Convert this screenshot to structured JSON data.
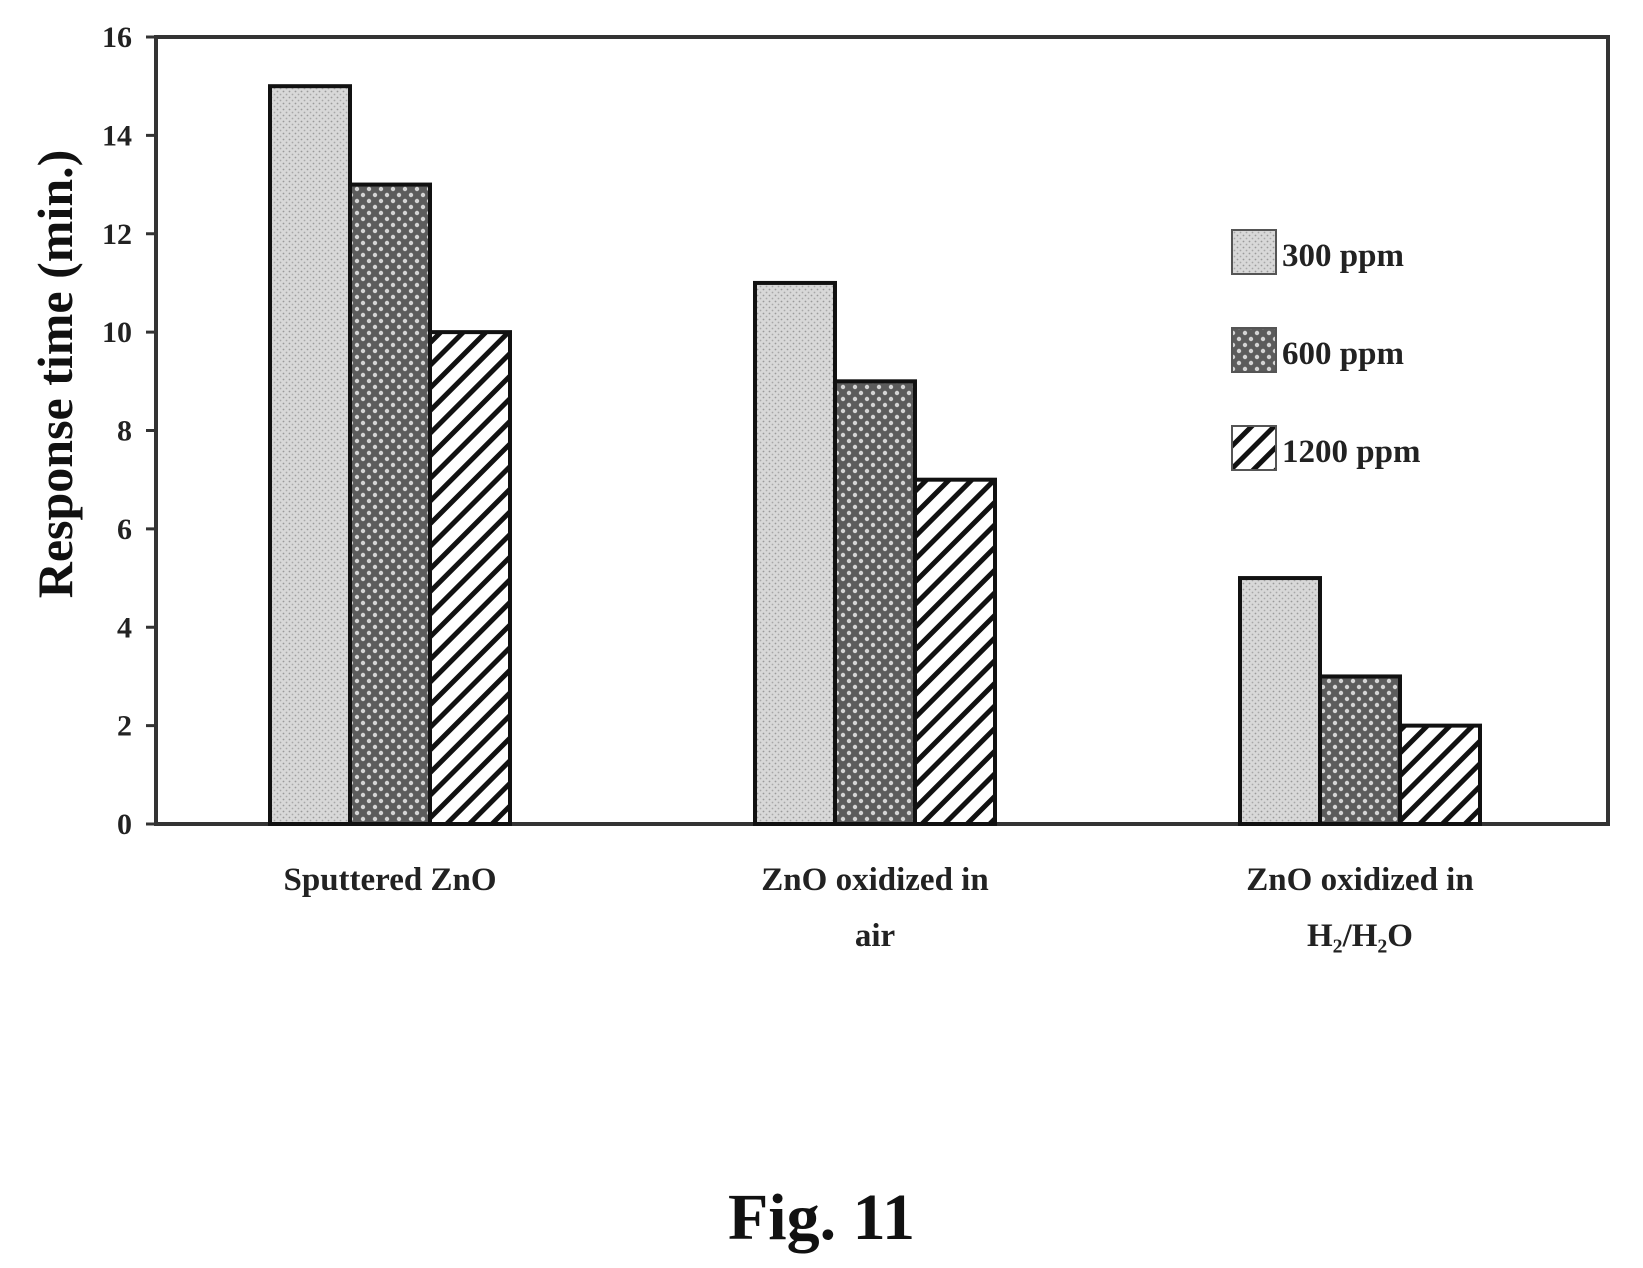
{
  "chart_data": {
    "type": "bar",
    "title": "",
    "xlabel": "",
    "ylabel": "Response time (min.)",
    "ylim": [
      0,
      16
    ],
    "yticks": [
      0,
      2,
      4,
      6,
      8,
      10,
      12,
      14,
      16
    ],
    "categories": [
      "Sputtered ZnO",
      "ZnO oxidized in air",
      "ZnO oxidized in H₂/H₂O"
    ],
    "category_lines": [
      [
        "Sputtered ZnO"
      ],
      [
        "ZnO oxidized in",
        "air"
      ],
      [
        "ZnO oxidized in",
        "H₂/H₂O"
      ]
    ],
    "series": [
      {
        "name": "300 ppm",
        "values": [
          15,
          11,
          5
        ],
        "pattern": "dots",
        "color": "#cfcfcf"
      },
      {
        "name": "600 ppm",
        "values": [
          13,
          9,
          3
        ],
        "pattern": "checker",
        "color": "#5a5a5a"
      },
      {
        "name": "1200 ppm",
        "values": [
          10,
          7,
          2
        ],
        "pattern": "diagonal",
        "color": "#111111"
      }
    ],
    "legend_position": "right",
    "grid": false
  },
  "caption": "Fig. 11"
}
